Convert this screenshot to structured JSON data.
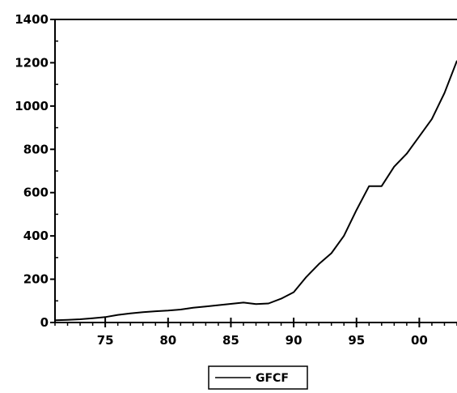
{
  "chart_data": {
    "type": "line",
    "title": "",
    "xlabel": "",
    "ylabel": "",
    "xlim": [
      1971,
      2003
    ],
    "ylim": [
      0,
      1400
    ],
    "x_ticks": [
      {
        "value": 1975,
        "label": "75"
      },
      {
        "value": 1980,
        "label": "80"
      },
      {
        "value": 1985,
        "label": "85"
      },
      {
        "value": 1990,
        "label": "90"
      },
      {
        "value": 1995,
        "label": "95"
      },
      {
        "value": 2000,
        "label": "00"
      }
    ],
    "y_ticks": [
      {
        "value": 0,
        "label": "0"
      },
      {
        "value": 200,
        "label": "200"
      },
      {
        "value": 400,
        "label": "400"
      },
      {
        "value": 600,
        "label": "600"
      },
      {
        "value": 800,
        "label": "800"
      },
      {
        "value": 1000,
        "label": "1000"
      },
      {
        "value": 1200,
        "label": "1200"
      },
      {
        "value": 1400,
        "label": "1400"
      }
    ],
    "grid": false,
    "legend_position": "bottom",
    "series": [
      {
        "name": "GFCF",
        "color": "#000000",
        "x": [
          1971,
          1972,
          1973,
          1974,
          1975,
          1976,
          1977,
          1978,
          1979,
          1980,
          1981,
          1982,
          1983,
          1984,
          1985,
          1986,
          1987,
          1988,
          1989,
          1990,
          1991,
          1992,
          1993,
          1994,
          1995,
          1996,
          1997,
          1998,
          1999,
          2000,
          2001,
          2002,
          2003
        ],
        "y": [
          10,
          12,
          15,
          20,
          25,
          35,
          42,
          48,
          52,
          55,
          60,
          68,
          74,
          80,
          86,
          92,
          85,
          88,
          110,
          140,
          210,
          270,
          320,
          400,
          520,
          630,
          630,
          720,
          780,
          860,
          940,
          1060,
          1210
        ]
      }
    ]
  }
}
